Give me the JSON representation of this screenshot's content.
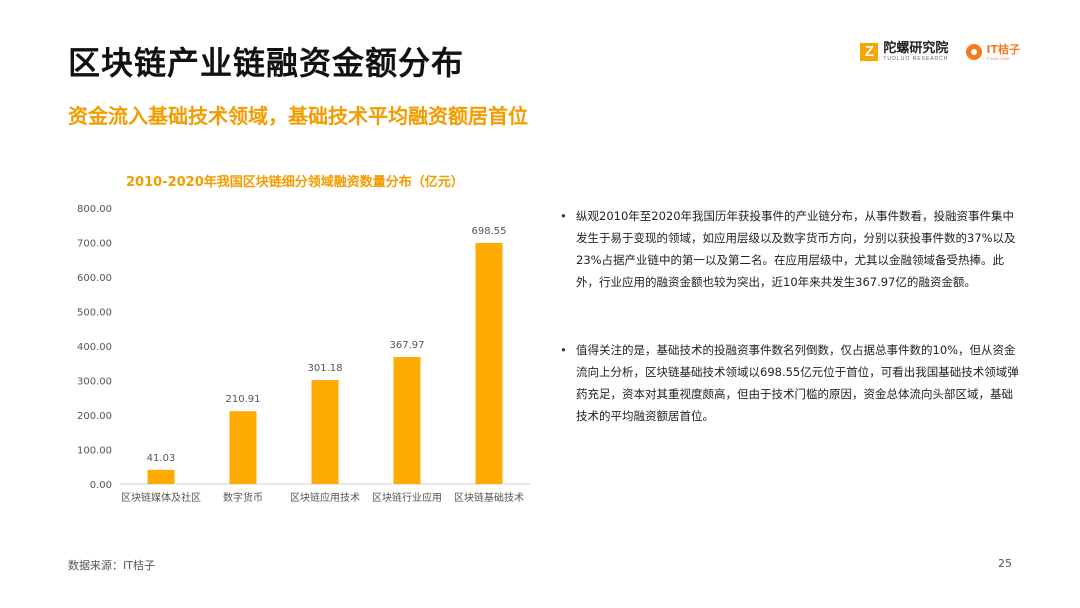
{
  "slide": {
    "title": "区块链产业链融资金额分布",
    "subtitle": "资金流入基础技术领域，基础技术平均融资额居首位",
    "logo_primary_cn": "陀螺研究院",
    "logo_primary_en": "TUOLUO RESEARCH",
    "logo_secondary_cn": "IT桔子",
    "logo_secondary_en": "ITJUZI.COM",
    "source": "数据来源：IT桔子",
    "page_number": "25"
  },
  "bullets": [
    "纵观2010年至2020年我国历年获投事件的产业链分布，从事件数看，投融资事件集中发生于易于变现的领域，如应用层级以及数字货币方向，分别以获投事件数的37%以及23%占据产业链中的第一以及第二名。在应用层级中，尤其以金融领域备受热捧。此外，行业应用的融资金额也较为突出，近10年来共发生367.97亿的融资金额。",
    "值得关注的是，基础技术的投融资事件数名列倒数，仅占据总事件数的10%，但从资金流向上分析，区块链基础技术领域以698.55亿元位于首位，可看出我国基础技术领域弹药充足，资本对其重视度颇高，但由于技术门槛的原因，资金总体流向头部区域，基础技术的平均融资额居首位。"
  ],
  "chart_data": {
    "type": "bar",
    "title": "2010-2020年我国区块链细分领域融资数量分布（亿元）",
    "categories": [
      "区块链媒体及社区",
      "数字货币",
      "区块链应用技术",
      "区块链行业应用",
      "区块链基础技术"
    ],
    "values": [
      41.03,
      210.91,
      301.18,
      367.97,
      698.55
    ],
    "value_labels": [
      "41.03",
      "210.91",
      "301.18",
      "367.97",
      "698.55"
    ],
    "yticks": [
      "0.00",
      "100.00",
      "200.00",
      "300.00",
      "400.00",
      "500.00",
      "600.00",
      "700.00",
      "800.00"
    ],
    "ylim": [
      0,
      800
    ],
    "grid": false,
    "bar_color": "#ffaa00",
    "axis_color": "#d0d0d0",
    "label_color": "#555555"
  }
}
